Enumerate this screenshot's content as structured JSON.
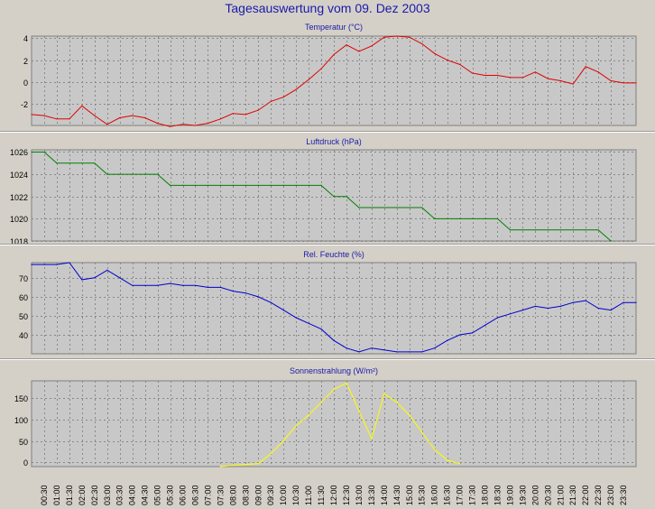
{
  "page": {
    "title": "Tagesauswertung vom 09. Dez 2003",
    "background": "#d4d0c8",
    "plot_background": "#c8c8c8",
    "grid_color": "#888888",
    "title_color": "#1a1aa8"
  },
  "x_axis": {
    "time_labels": [
      "00:30",
      "01:00",
      "01:30",
      "02:00",
      "02:30",
      "03:00",
      "03:30",
      "04:00",
      "04:30",
      "05:00",
      "05:30",
      "06:00",
      "06:30",
      "07:00",
      "07:30",
      "08:00",
      "08:30",
      "09:00",
      "09:30",
      "10:00",
      "10:30",
      "11:00",
      "11:30",
      "12:00",
      "12:30",
      "13:00",
      "13:30",
      "14:00",
      "14:30",
      "15:00",
      "15:30",
      "16:00",
      "16:30",
      "17:00",
      "17:30",
      "18:00",
      "18:30",
      "19:00",
      "19:30",
      "20:00",
      "20:30",
      "21:00",
      "21:30",
      "22:00",
      "22:30",
      "23:00",
      "23:30"
    ]
  },
  "chart_data": [
    {
      "type": "line",
      "title": "Temperatur (°C)",
      "color": "#e00000",
      "ylim": [
        -4,
        4.2
      ],
      "yticks": [
        -2,
        0,
        2,
        4
      ],
      "x": [
        "00:00",
        "00:30",
        "01:00",
        "01:30",
        "02:00",
        "02:30",
        "03:00",
        "03:30",
        "04:00",
        "04:30",
        "05:00",
        "05:30",
        "06:00",
        "06:30",
        "07:00",
        "07:30",
        "08:00",
        "08:30",
        "09:00",
        "09:30",
        "10:00",
        "10:30",
        "11:00",
        "11:30",
        "12:00",
        "12:30",
        "13:00",
        "13:30",
        "14:00",
        "14:30",
        "15:00",
        "15:30",
        "16:00",
        "16:30",
        "17:00",
        "17:30",
        "18:00",
        "18:30",
        "19:00",
        "19:30",
        "20:00",
        "20:30",
        "21:00",
        "21:30",
        "22:00",
        "22:30",
        "23:00",
        "23:30",
        "24:00"
      ],
      "values": [
        -3.0,
        -3.1,
        -3.4,
        -3.4,
        -2.2,
        -3.1,
        -3.9,
        -3.3,
        -3.1,
        -3.3,
        -3.8,
        -4.1,
        -3.9,
        -4.0,
        -3.8,
        -3.4,
        -2.9,
        -3.0,
        -2.6,
        -1.8,
        -1.4,
        -0.7,
        0.2,
        1.2,
        2.5,
        3.4,
        2.8,
        3.3,
        4.1,
        4.2,
        4.1,
        3.5,
        2.6,
        2.0,
        1.6,
        0.8,
        0.6,
        0.6,
        0.4,
        0.4,
        0.9,
        0.3,
        0.1,
        -0.2,
        1.4,
        0.9,
        0.1,
        -0.1,
        -0.1
      ]
    },
    {
      "type": "line",
      "title": "Luftdruck (hPa)",
      "color": "#008000",
      "ylim": [
        1018,
        1026.2
      ],
      "yticks": [
        1018,
        1020,
        1022,
        1024,
        1026
      ],
      "x": [
        "00:00",
        "00:30",
        "01:00",
        "01:30",
        "02:00",
        "02:30",
        "03:00",
        "03:30",
        "04:00",
        "04:30",
        "05:00",
        "05:30",
        "06:00",
        "06:30",
        "07:00",
        "07:30",
        "08:00",
        "08:30",
        "09:00",
        "09:30",
        "10:00",
        "10:30",
        "11:00",
        "11:30",
        "12:00",
        "12:30",
        "13:00",
        "13:30",
        "14:00",
        "14:30",
        "15:00",
        "15:30",
        "16:00",
        "16:30",
        "17:00",
        "17:30",
        "18:00",
        "18:30",
        "19:00",
        "19:30",
        "20:00",
        "20:30",
        "21:00",
        "21:30",
        "22:00",
        "22:30",
        "23:00"
      ],
      "values": [
        1026,
        1026,
        1025,
        1025,
        1025,
        1025,
        1024,
        1024,
        1024,
        1024,
        1024,
        1023,
        1023,
        1023,
        1023,
        1023,
        1023,
        1023,
        1023,
        1023,
        1023,
        1023,
        1023,
        1023,
        1022,
        1022,
        1021,
        1021,
        1021,
        1021,
        1021,
        1021,
        1020,
        1020,
        1020,
        1020,
        1020,
        1020,
        1019,
        1019,
        1019,
        1019,
        1019,
        1019,
        1019,
        1019,
        1018
      ]
    },
    {
      "type": "line",
      "title": "Rel. Feuchte (%)",
      "color": "#0000cc",
      "ylim": [
        30,
        78
      ],
      "yticks": [
        40,
        50,
        60,
        70
      ],
      "x": [
        "00:00",
        "00:30",
        "01:00",
        "01:30",
        "02:00",
        "02:30",
        "03:00",
        "03:30",
        "04:00",
        "04:30",
        "05:00",
        "05:30",
        "06:00",
        "06:30",
        "07:00",
        "07:30",
        "08:00",
        "08:30",
        "09:00",
        "09:30",
        "10:00",
        "10:30",
        "11:00",
        "11:30",
        "12:00",
        "12:30",
        "13:00",
        "13:30",
        "14:00",
        "14:30",
        "15:00",
        "15:30",
        "16:00",
        "16:30",
        "17:00",
        "17:30",
        "18:00",
        "18:30",
        "19:00",
        "19:30",
        "20:00",
        "20:30",
        "21:00",
        "21:30",
        "22:00",
        "22:30",
        "23:00",
        "23:30",
        "24:00"
      ],
      "values": [
        77,
        77,
        77,
        78,
        69,
        70,
        74,
        70,
        66,
        66,
        66,
        67,
        66,
        66,
        65,
        65,
        63,
        62,
        60,
        57,
        53,
        49,
        46,
        43,
        37,
        33,
        31,
        33,
        32,
        31,
        31,
        31,
        33,
        37,
        40,
        41,
        45,
        49,
        51,
        53,
        55,
        54,
        55,
        57,
        58,
        54,
        53,
        57,
        57
      ]
    },
    {
      "type": "line",
      "title": "Sonnenstrahlung (W/m²)",
      "color": "#ffff00",
      "ylim": [
        -10,
        190
      ],
      "yticks": [
        0,
        50,
        100,
        150
      ],
      "x": [
        "07:30",
        "08:00",
        "08:30",
        "09:00",
        "09:30",
        "10:00",
        "10:30",
        "11:00",
        "11:30",
        "12:00",
        "12:30",
        "13:00",
        "13:30",
        "14:00",
        "14:30",
        "15:00",
        "15:30",
        "16:00",
        "16:30",
        "17:00"
      ],
      "values": [
        -10,
        -7,
        -5,
        -3,
        20,
        50,
        85,
        110,
        140,
        170,
        185,
        120,
        55,
        160,
        140,
        110,
        70,
        30,
        5,
        -3
      ]
    }
  ]
}
